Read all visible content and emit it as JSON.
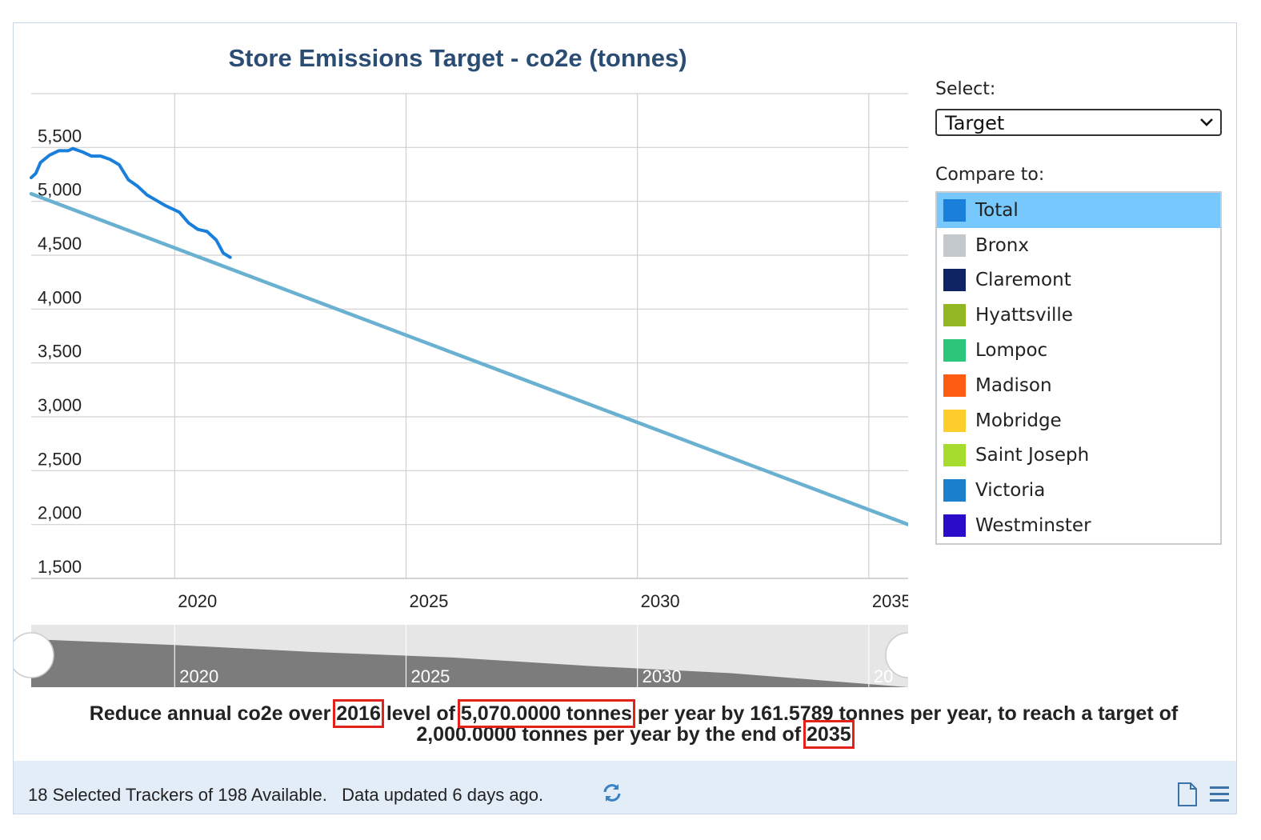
{
  "chart_data": {
    "type": "line",
    "title": "Store Emissions Target - co2e (tonnes)",
    "xlabel": "",
    "ylabel": "",
    "xlim": [
      2016.9,
      2035.85
    ],
    "ylim": [
      1500,
      5500
    ],
    "y_ticks": [
      "1,500",
      "2,000",
      "2,500",
      "3,000",
      "3,500",
      "4,000",
      "4,500",
      "5,000",
      "5,500"
    ],
    "x_ticks": [
      "2020",
      "2025",
      "2030",
      "2035"
    ],
    "grid": true,
    "series": [
      {
        "name": "Total",
        "color": "#1a7fdb",
        "x": [
          2016.9,
          2017.0,
          2017.1,
          2017.3,
          2017.5,
          2017.7,
          2017.8,
          2018.0,
          2018.2,
          2018.4,
          2018.6,
          2018.8,
          2019.0,
          2019.2,
          2019.4,
          2019.6,
          2019.8,
          2019.95,
          2020.1,
          2020.3,
          2020.5,
          2020.7,
          2020.9,
          2021.05,
          2021.2
        ],
        "y": [
          5220,
          5260,
          5360,
          5430,
          5470,
          5470,
          5490,
          5460,
          5420,
          5420,
          5390,
          5340,
          5200,
          5140,
          5060,
          5010,
          4960,
          4930,
          4900,
          4800,
          4740,
          4720,
          4640,
          4520,
          4480
        ]
      },
      {
        "name": "Target",
        "color": "#6ab1d1",
        "x": [
          2016.9,
          2035.85
        ],
        "y": [
          5070,
          2000
        ]
      }
    ],
    "navigator_ticks": [
      "2020",
      "2025",
      "2030",
      "20"
    ]
  },
  "side": {
    "select_label": "Select:",
    "select_value": "Target",
    "compare_label": "Compare to:",
    "items": [
      {
        "label": "Total",
        "color": "#1a7fdb"
      },
      {
        "label": "Bronx",
        "color": "#c3c8cd"
      },
      {
        "label": "Claremont",
        "color": "#0f2563"
      },
      {
        "label": "Hyattsville",
        "color": "#93b623"
      },
      {
        "label": "Lompoc",
        "color": "#2cc67a"
      },
      {
        "label": "Madison",
        "color": "#ff5c13"
      },
      {
        "label": "Mobridge",
        "color": "#fdcd2b"
      },
      {
        "label": "Saint Joseph",
        "color": "#a6dc2e"
      },
      {
        "label": "Victoria",
        "color": "#1a80cc"
      },
      {
        "label": "Westminster",
        "color": "#2a0bc8"
      }
    ]
  },
  "description": {
    "p1": "Reduce annual co2e over ",
    "year_start": "2016",
    "p2": " level of ",
    "level": "5,070.0000 tonnes",
    "p3": " per year by 161.5789 tonnes per year, to reach a target of 2,000.0000 tonnes per year by the end of ",
    "year_end": "2035"
  },
  "footer": {
    "status": "18 Selected Trackers of 198 Available.   Data updated 6 days ago."
  },
  "icons": {
    "refresh": "refresh-icon",
    "document": "document-icon",
    "menu": "menu-icon",
    "chevron": "chevron-down-icon"
  }
}
